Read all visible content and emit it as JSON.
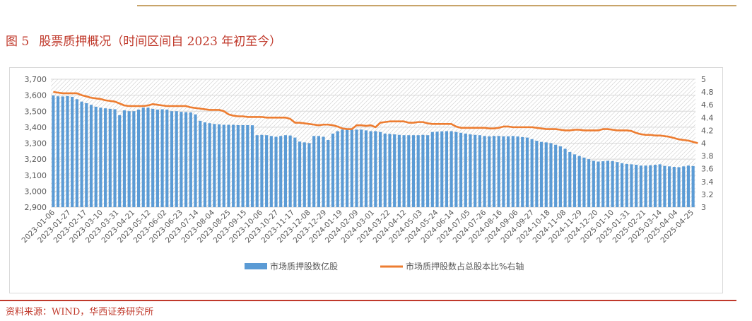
{
  "header": {
    "figure_number": "图 5",
    "figure_title": "股票质押概况（时间区间自 2023 年初至今）"
  },
  "footer": {
    "source": "资料来源：WIND，华西证券研究所"
  },
  "colors": {
    "bar": "#5b9bd5",
    "line": "#ed7d31",
    "title": "#c0392b",
    "top_rule": "#c8a46a"
  },
  "chart_data": {
    "type": "bar",
    "title": "",
    "xlabel": "",
    "ylabel": "",
    "grid": true,
    "legend_position": "bottom",
    "y_left": {
      "min": 2900,
      "max": 3700,
      "ticks": [
        "2,900",
        "3,000",
        "3,100",
        "3,200",
        "3,300",
        "3,400",
        "3,500",
        "3,600",
        "3,700"
      ]
    },
    "y_right": {
      "min": 3,
      "max": 5,
      "ticks": [
        "3",
        "3.2",
        "3.4",
        "3.6",
        "3.8",
        "4",
        "4.2",
        "4.4",
        "4.6",
        "4.8",
        "5"
      ]
    },
    "x_tick_labels": [
      "2023-01-06",
      "2023-01-27",
      "2023-02-17",
      "2023-03-10",
      "2023-03-31",
      "2023-04-21",
      "2023-05-12",
      "2023-06-02",
      "2023-06-23",
      "2023-07-14",
      "2023-08-04",
      "2023-08-25",
      "2023-09-15",
      "2023-10-06",
      "2023-10-27",
      "2023-11-17",
      "2023-12-08",
      "2023-12-29",
      "2024-01-19",
      "2024-02-09",
      "2024-03-01",
      "2024-03-22",
      "2024-04-12",
      "2024-05-03",
      "2024-05-24",
      "2024-06-14",
      "2024-07-05",
      "2024-07-26",
      "2024-08-16",
      "2024-09-06",
      "2024-09-27",
      "2024-10-18",
      "2024-11-08",
      "2024-11-29",
      "2024-12-20",
      "2025-01-10",
      "2025-01-31",
      "2025-02-21",
      "2025-03-14",
      "2025-04-04",
      "2025-04-25"
    ],
    "series": [
      {
        "name": "市场质押股数亿股",
        "type": "bar",
        "axis": "left",
        "values": [
          3598,
          3593,
          3592,
          3594,
          3590,
          3575,
          3560,
          3550,
          3540,
          3528,
          3522,
          3518,
          3515,
          3512,
          3475,
          3505,
          3500,
          3500,
          3510,
          3522,
          3522,
          3515,
          3510,
          3512,
          3510,
          3500,
          3500,
          3496,
          3494,
          3492,
          3480,
          3440,
          3430,
          3425,
          3420,
          3418,
          3415,
          3415,
          3415,
          3413,
          3413,
          3413,
          3412,
          3350,
          3352,
          3350,
          3345,
          3340,
          3345,
          3350,
          3348,
          3335,
          3310,
          3305,
          3300,
          3345,
          3345,
          3340,
          3320,
          3360,
          3375,
          3385,
          3385,
          3385,
          3385,
          3385,
          3380,
          3375,
          3375,
          3370,
          3360,
          3358,
          3355,
          3352,
          3350,
          3350,
          3350,
          3350,
          3352,
          3350,
          3370,
          3372,
          3374,
          3375,
          3375,
          3370,
          3365,
          3360,
          3355,
          3352,
          3350,
          3345,
          3343,
          3345,
          3345,
          3343,
          3343,
          3345,
          3342,
          3338,
          3335,
          3325,
          3315,
          3308,
          3305,
          3300,
          3290,
          3280,
          3265,
          3245,
          3230,
          3220,
          3210,
          3200,
          3190,
          3185,
          3187,
          3190,
          3188,
          3182,
          3175,
          3170,
          3168,
          3165,
          3160,
          3160,
          3162,
          3165,
          3168,
          3158,
          3155,
          3152,
          3150,
          3155,
          3160,
          3157
        ]
      },
      {
        "name": "市场质押股数占总股本比%右轴",
        "type": "line",
        "axis": "right",
        "values": [
          4.8,
          4.79,
          4.78,
          4.78,
          4.78,
          4.78,
          4.75,
          4.73,
          4.71,
          4.7,
          4.69,
          4.67,
          4.66,
          4.65,
          4.62,
          4.59,
          4.58,
          4.58,
          4.58,
          4.58,
          4.59,
          4.61,
          4.6,
          4.59,
          4.58,
          4.58,
          4.58,
          4.58,
          4.58,
          4.56,
          4.55,
          4.54,
          4.53,
          4.52,
          4.52,
          4.52,
          4.5,
          4.45,
          4.43,
          4.42,
          4.42,
          4.41,
          4.41,
          4.41,
          4.41,
          4.4,
          4.4,
          4.4,
          4.4,
          4.4,
          4.38,
          4.32,
          4.32,
          4.31,
          4.3,
          4.29,
          4.28,
          4.29,
          4.29,
          4.28,
          4.26,
          4.23,
          4.22,
          4.22,
          4.28,
          4.28,
          4.27,
          4.28,
          4.25,
          4.32,
          4.33,
          4.34,
          4.34,
          4.34,
          4.34,
          4.32,
          4.32,
          4.33,
          4.33,
          4.31,
          4.3,
          4.3,
          4.3,
          4.3,
          4.3,
          4.26,
          4.24,
          4.24,
          4.24,
          4.24,
          4.24,
          4.24,
          4.23,
          4.23,
          4.24,
          4.26,
          4.26,
          4.25,
          4.25,
          4.25,
          4.25,
          4.25,
          4.24,
          4.23,
          4.22,
          4.22,
          4.22,
          4.21,
          4.2,
          4.2,
          4.21,
          4.21,
          4.2,
          4.2,
          4.2,
          4.2,
          4.22,
          4.22,
          4.21,
          4.2,
          4.2,
          4.2,
          4.19,
          4.16,
          4.14,
          4.13,
          4.13,
          4.12,
          4.12,
          4.11,
          4.1,
          4.08,
          4.06,
          4.05,
          4.04,
          4.02,
          4.0
        ]
      }
    ]
  }
}
